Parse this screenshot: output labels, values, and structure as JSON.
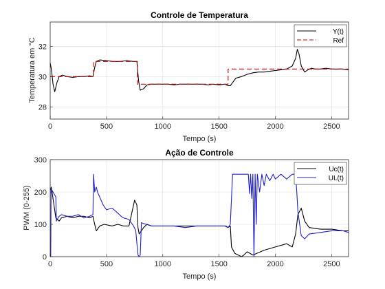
{
  "chart_data": [
    {
      "type": "line",
      "title": "Controle de Temperatura",
      "xlabel": "Tempo (s)",
      "ylabel": "Temperatura em °C",
      "xlim": [
        0,
        2650
      ],
      "ylim": [
        27.2,
        33.6
      ],
      "xticks": [
        0,
        500,
        1000,
        1500,
        2000,
        2500
      ],
      "yticks": [
        28,
        30,
        32
      ],
      "grid": true,
      "legend_position": "top-right",
      "series": [
        {
          "name": "Y(t)",
          "color": "#000000",
          "style": "solid",
          "x": [
            0,
            8,
            15,
            25,
            40,
            60,
            80,
            110,
            150,
            200,
            250,
            300,
            350,
            380,
            395,
            410,
            440,
            500,
            560,
            620,
            680,
            740,
            770,
            775,
            785,
            800,
            830,
            860,
            900,
            950,
            1000,
            1050,
            1100,
            1150,
            1200,
            1250,
            1300,
            1350,
            1400,
            1450,
            1500,
            1550,
            1580,
            1600,
            1620,
            1650,
            1700,
            1750,
            1800,
            1850,
            1900,
            1950,
            2000,
            2050,
            2100,
            2150,
            2180,
            2195,
            2210,
            2230,
            2260,
            2290,
            2320,
            2350,
            2400,
            2450,
            2500,
            2550,
            2600,
            2650
          ],
          "y": [
            30.9,
            30.6,
            30.2,
            29.5,
            29.0,
            29.6,
            30.0,
            30.1,
            30.0,
            29.95,
            30.0,
            30.0,
            30.05,
            30.0,
            30.6,
            31.0,
            31.1,
            31.05,
            31.0,
            31.0,
            31.05,
            31.0,
            31.0,
            30.6,
            29.7,
            29.1,
            29.2,
            29.45,
            29.5,
            29.5,
            29.5,
            29.5,
            29.45,
            29.5,
            29.5,
            29.5,
            29.5,
            29.5,
            29.45,
            29.5,
            29.45,
            29.5,
            29.4,
            29.4,
            29.6,
            29.9,
            30.0,
            30.15,
            30.25,
            30.3,
            30.3,
            30.35,
            30.4,
            30.45,
            30.5,
            30.7,
            31.2,
            31.8,
            31.5,
            30.7,
            30.3,
            30.45,
            30.55,
            30.5,
            30.5,
            30.55,
            30.5,
            30.5,
            30.5,
            30.45
          ]
        },
        {
          "name": "Ref",
          "color": "#cc0000",
          "style": "dashed",
          "x": [
            0,
            385,
            385,
            775,
            775,
            1580,
            1580,
            2650
          ],
          "y": [
            30,
            30,
            31,
            31,
            29.5,
            29.5,
            30.5,
            30.5
          ]
        }
      ]
    },
    {
      "type": "line",
      "title": "Ação de Controle",
      "xlabel": "Tempo (s)",
      "ylabel": "PWM (0-255)",
      "xlim": [
        0,
        2650
      ],
      "ylim": [
        0,
        300
      ],
      "xticks": [
        0,
        500,
        1000,
        1500,
        2000,
        2500
      ],
      "yticks": [
        0,
        100,
        200,
        300
      ],
      "grid": true,
      "legend_position": "top-right",
      "series": [
        {
          "name": "Uc(t)",
          "color": "#000000",
          "style": "solid",
          "x": [
            0,
            10,
            25,
            50,
            80,
            100,
            150,
            200,
            250,
            300,
            350,
            380,
            395,
            410,
            440,
            480,
            550,
            600,
            650,
            700,
            750,
            770,
            780,
            790,
            810,
            830,
            860,
            900,
            1000,
            1100,
            1200,
            1300,
            1400,
            1500,
            1560,
            1580,
            1600,
            1610,
            1640,
            1700,
            1720,
            1750,
            1800,
            1900,
            2000,
            2100,
            2150,
            2180,
            2200,
            2230,
            2260,
            2300,
            2400,
            2500,
            2600,
            2650
          ],
          "y": [
            205,
            215,
            180,
            120,
            110,
            120,
            125,
            120,
            125,
            125,
            120,
            125,
            100,
            80,
            95,
            100,
            95,
            100,
            95,
            95,
            175,
            160,
            90,
            70,
            80,
            90,
            100,
            95,
            95,
            95,
            95,
            95,
            95,
            95,
            95,
            90,
            95,
            30,
            10,
            0,
            5,
            15,
            5,
            20,
            30,
            40,
            30,
            70,
            130,
            150,
            110,
            90,
            85,
            85,
            80,
            80
          ]
        },
        {
          "name": "UL(t)",
          "color": "#1f1fcc",
          "style": "solid",
          "x": [
            0,
            5,
            8,
            50,
            55,
            70,
            80,
            100,
            150,
            200,
            250,
            300,
            350,
            380,
            385,
            395,
            410,
            420,
            470,
            500,
            550,
            600,
            630,
            650,
            700,
            740,
            760,
            780,
            790,
            800,
            810,
            850,
            900,
            1000,
            1100,
            1200,
            1300,
            1400,
            1500,
            1550,
            1580,
            1600,
            1620,
            1650,
            1660,
            1700,
            1750,
            1760,
            1770,
            1780,
            1790,
            1800,
            1810,
            1820,
            1830,
            1840,
            1860,
            1880,
            1900,
            1920,
            1950,
            1980,
            2000,
            2050,
            2100,
            2150,
            2180,
            2190,
            2200,
            2210,
            2230,
            2260,
            2300,
            2400,
            2500,
            2600,
            2650
          ],
          "y": [
            0,
            0,
            210,
            185,
            110,
            120,
            125,
            130,
            125,
            125,
            130,
            120,
            125,
            130,
            255,
            200,
            215,
            200,
            160,
            145,
            150,
            135,
            125,
            120,
            115,
            95,
            80,
            5,
            0,
            5,
            105,
            100,
            95,
            95,
            95,
            90,
            95,
            95,
            95,
            95,
            90,
            100,
            255,
            255,
            255,
            255,
            255,
            255,
            195,
            255,
            180,
            255,
            0,
            255,
            100,
            255,
            200,
            255,
            220,
            255,
            235,
            255,
            240,
            255,
            240,
            255,
            255,
            200,
            140,
            115,
            65,
            55,
            70,
            75,
            80,
            80,
            75
          ]
        }
      ]
    }
  ]
}
